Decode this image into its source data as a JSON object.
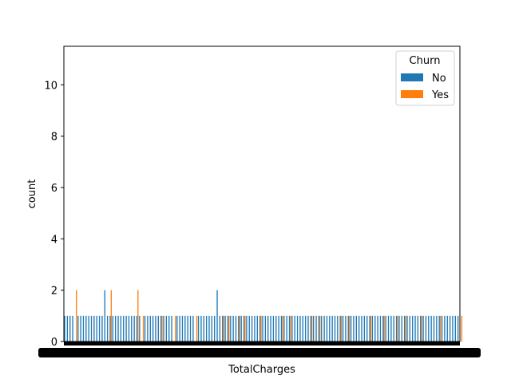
{
  "chart_data": {
    "type": "bar",
    "xlabel": "TotalCharges",
    "ylabel": "count",
    "ylim": [
      0,
      11.5
    ],
    "yticks": [
      0,
      2,
      4,
      6,
      8,
      10
    ],
    "grid": false,
    "legend": {
      "title": "Churn",
      "placement": "top-right",
      "entries": [
        "No",
        "Yes"
      ]
    },
    "x_tick_labels_note": "overlapping unreadable category tick labels",
    "series": [
      {
        "name": "No",
        "color": "#1f77b4",
        "values": [
          1,
          1,
          1,
          1,
          0,
          1,
          1,
          1,
          1,
          1,
          1,
          1,
          1,
          1,
          1,
          2,
          1,
          1,
          1,
          1,
          1,
          1,
          1,
          1,
          1,
          1,
          1,
          1,
          1,
          0,
          1,
          1,
          1,
          1,
          1,
          1,
          1,
          1,
          1,
          1,
          1,
          0,
          1,
          1,
          1,
          1,
          1,
          1,
          1,
          0,
          1,
          1,
          1,
          1,
          1,
          1,
          1,
          2,
          1,
          1,
          1,
          1,
          1,
          1,
          1,
          1,
          1,
          1,
          1,
          1,
          1,
          1,
          1,
          1,
          1,
          1,
          1,
          1,
          1,
          1,
          1,
          1,
          1,
          1,
          1,
          1,
          1,
          1,
          1,
          1,
          1,
          1,
          1,
          1,
          1,
          1,
          1,
          1,
          1,
          1,
          1,
          1,
          1,
          1,
          1,
          1,
          1,
          1,
          1,
          1,
          1,
          1,
          1,
          1,
          1,
          1,
          1,
          1,
          1,
          1,
          1,
          1,
          1,
          1,
          1,
          1,
          1,
          1,
          1,
          1,
          1,
          1,
          1,
          1,
          1,
          1,
          1,
          1,
          1,
          1,
          1,
          1,
          1,
          1,
          1,
          1,
          1,
          1
        ]
      },
      {
        "name": "Yes",
        "color": "#ff7f0e",
        "values": [
          0,
          0,
          0,
          0,
          2,
          0,
          0,
          0,
          0,
          0,
          0,
          0,
          0,
          0,
          0,
          0,
          0,
          2,
          0,
          0,
          0,
          0,
          0,
          0,
          0,
          0,
          0,
          2,
          0,
          1,
          0,
          0,
          0,
          0,
          0,
          0,
          1,
          0,
          0,
          0,
          0,
          1,
          0,
          0,
          0,
          0,
          0,
          0,
          0,
          1,
          0,
          0,
          0,
          0,
          0,
          0,
          0,
          0,
          0,
          1,
          0,
          1,
          0,
          0,
          0,
          1,
          0,
          1,
          0,
          0,
          0,
          0,
          0,
          1,
          0,
          0,
          0,
          0,
          0,
          0,
          0,
          1,
          0,
          0,
          1,
          0,
          0,
          0,
          0,
          0,
          0,
          0,
          1,
          0,
          0,
          1,
          0,
          0,
          0,
          0,
          0,
          0,
          0,
          1,
          0,
          0,
          1,
          0,
          0,
          0,
          0,
          0,
          0,
          0,
          1,
          0,
          0,
          0,
          0,
          1,
          0,
          0,
          0,
          0,
          1,
          0,
          0,
          1,
          0,
          0,
          0,
          0,
          0,
          1,
          0,
          0,
          0,
          0,
          0,
          0,
          1,
          0,
          0,
          0,
          0,
          0,
          0,
          0,
          1,
          0
        ]
      }
    ]
  }
}
